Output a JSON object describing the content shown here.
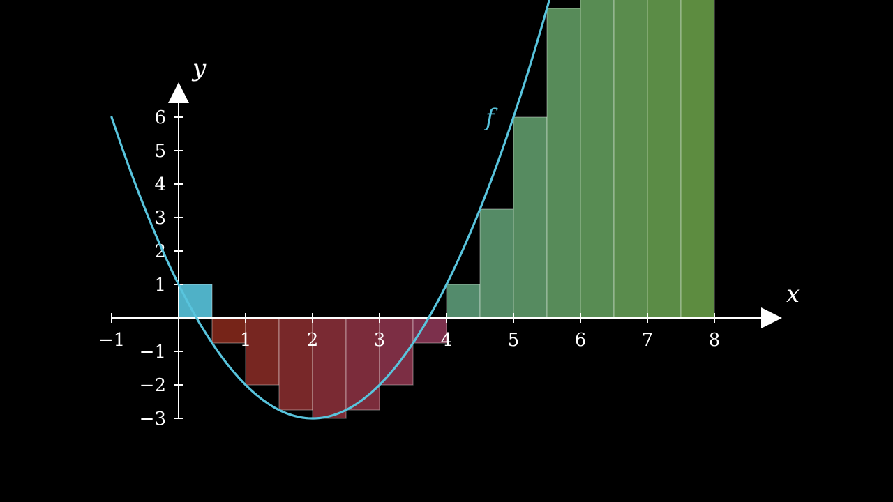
{
  "chart_data": {
    "type": "bar",
    "title": "",
    "xlabel": "x",
    "ylabel": "y",
    "xlim": [
      -1,
      8.5
    ],
    "ylim": [
      -3,
      6.5
    ],
    "x_ticks": [
      -1,
      1,
      2,
      3,
      4,
      5,
      6,
      7,
      8
    ],
    "x_tick_labels": [
      "−1",
      "1",
      "2",
      "3",
      "4",
      "5",
      "6",
      "7",
      "8"
    ],
    "y_ticks": [
      -3,
      -2,
      -1,
      1,
      2,
      3,
      4,
      5,
      6
    ],
    "y_tick_labels": [
      "−3",
      "−2",
      "−1",
      "1",
      "2",
      "3",
      "4",
      "5",
      "6"
    ],
    "grid": false,
    "curve": {
      "name": "f",
      "expression": "(x - 2)^2 - 3",
      "x_start": -1,
      "x_end": 5.65,
      "color": "#58c4dd"
    },
    "riemann": {
      "dx": 0.5,
      "sample": "left",
      "bars": [
        {
          "x": 0.0,
          "value": 1.0
        },
        {
          "x": 0.5,
          "value": -0.75
        },
        {
          "x": 1.0,
          "value": -2.0
        },
        {
          "x": 1.5,
          "value": -2.75
        },
        {
          "x": 2.0,
          "value": -3.0
        },
        {
          "x": 2.5,
          "value": -2.75
        },
        {
          "x": 3.0,
          "value": -2.0
        },
        {
          "x": 3.5,
          "value": -0.75
        },
        {
          "x": 4.0,
          "value": 1.0
        },
        {
          "x": 4.5,
          "value": 3.25
        },
        {
          "x": 5.0,
          "value": 6.0
        },
        {
          "x": 5.5,
          "value": 9.25
        },
        {
          "x": 6.0,
          "value": 13.0
        },
        {
          "x": 6.5,
          "value": 17.25
        },
        {
          "x": 7.0,
          "value": 22.0
        },
        {
          "x": 7.5,
          "value": 27.25
        }
      ],
      "colors": {
        "start_positive": "#58c4dd",
        "negative_start": "#83281b",
        "negative_end": "#8a3554",
        "positive_start": "#5c9a78",
        "positive_end": "#679b47"
      }
    }
  }
}
